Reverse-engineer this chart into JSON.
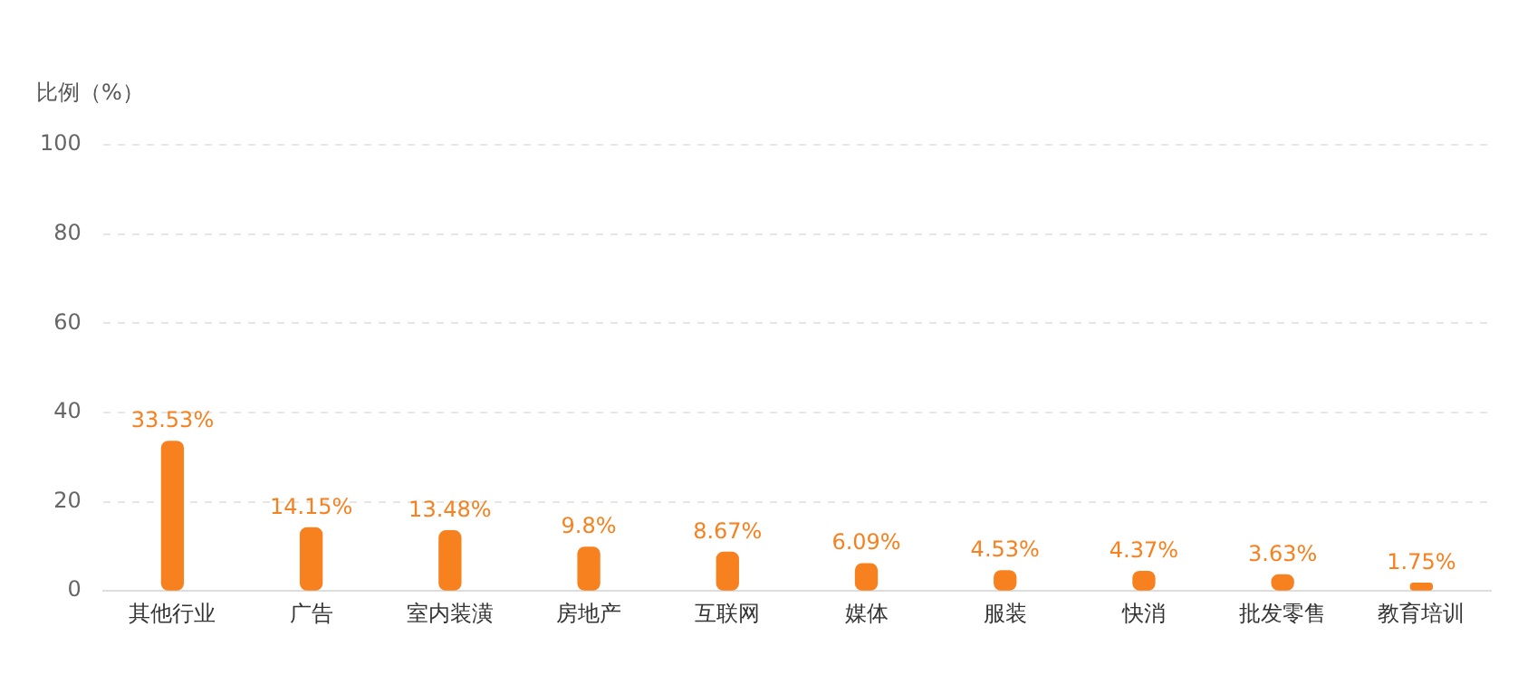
{
  "chart_data": {
    "type": "bar",
    "ylabel": "比例（%）",
    "categories": [
      "其他行业",
      "广告",
      "室内装潢",
      "房地产",
      "互联网",
      "媒体",
      "服装",
      "快消",
      "批发零售",
      "教育培训"
    ],
    "values": [
      33.53,
      14.15,
      13.48,
      9.8,
      8.67,
      6.09,
      4.53,
      4.37,
      3.63,
      1.75
    ],
    "value_labels": [
      "33.53%",
      "14.15%",
      "13.48%",
      "9.8%",
      "8.67%",
      "6.09%",
      "4.53%",
      "4.37%",
      "3.63%",
      "1.75%"
    ],
    "color": "#f7801f",
    "ylim": [
      0,
      100
    ],
    "yticks": [
      0,
      20,
      40,
      60,
      80,
      100
    ],
    "grid": "y",
    "legend": false
  }
}
